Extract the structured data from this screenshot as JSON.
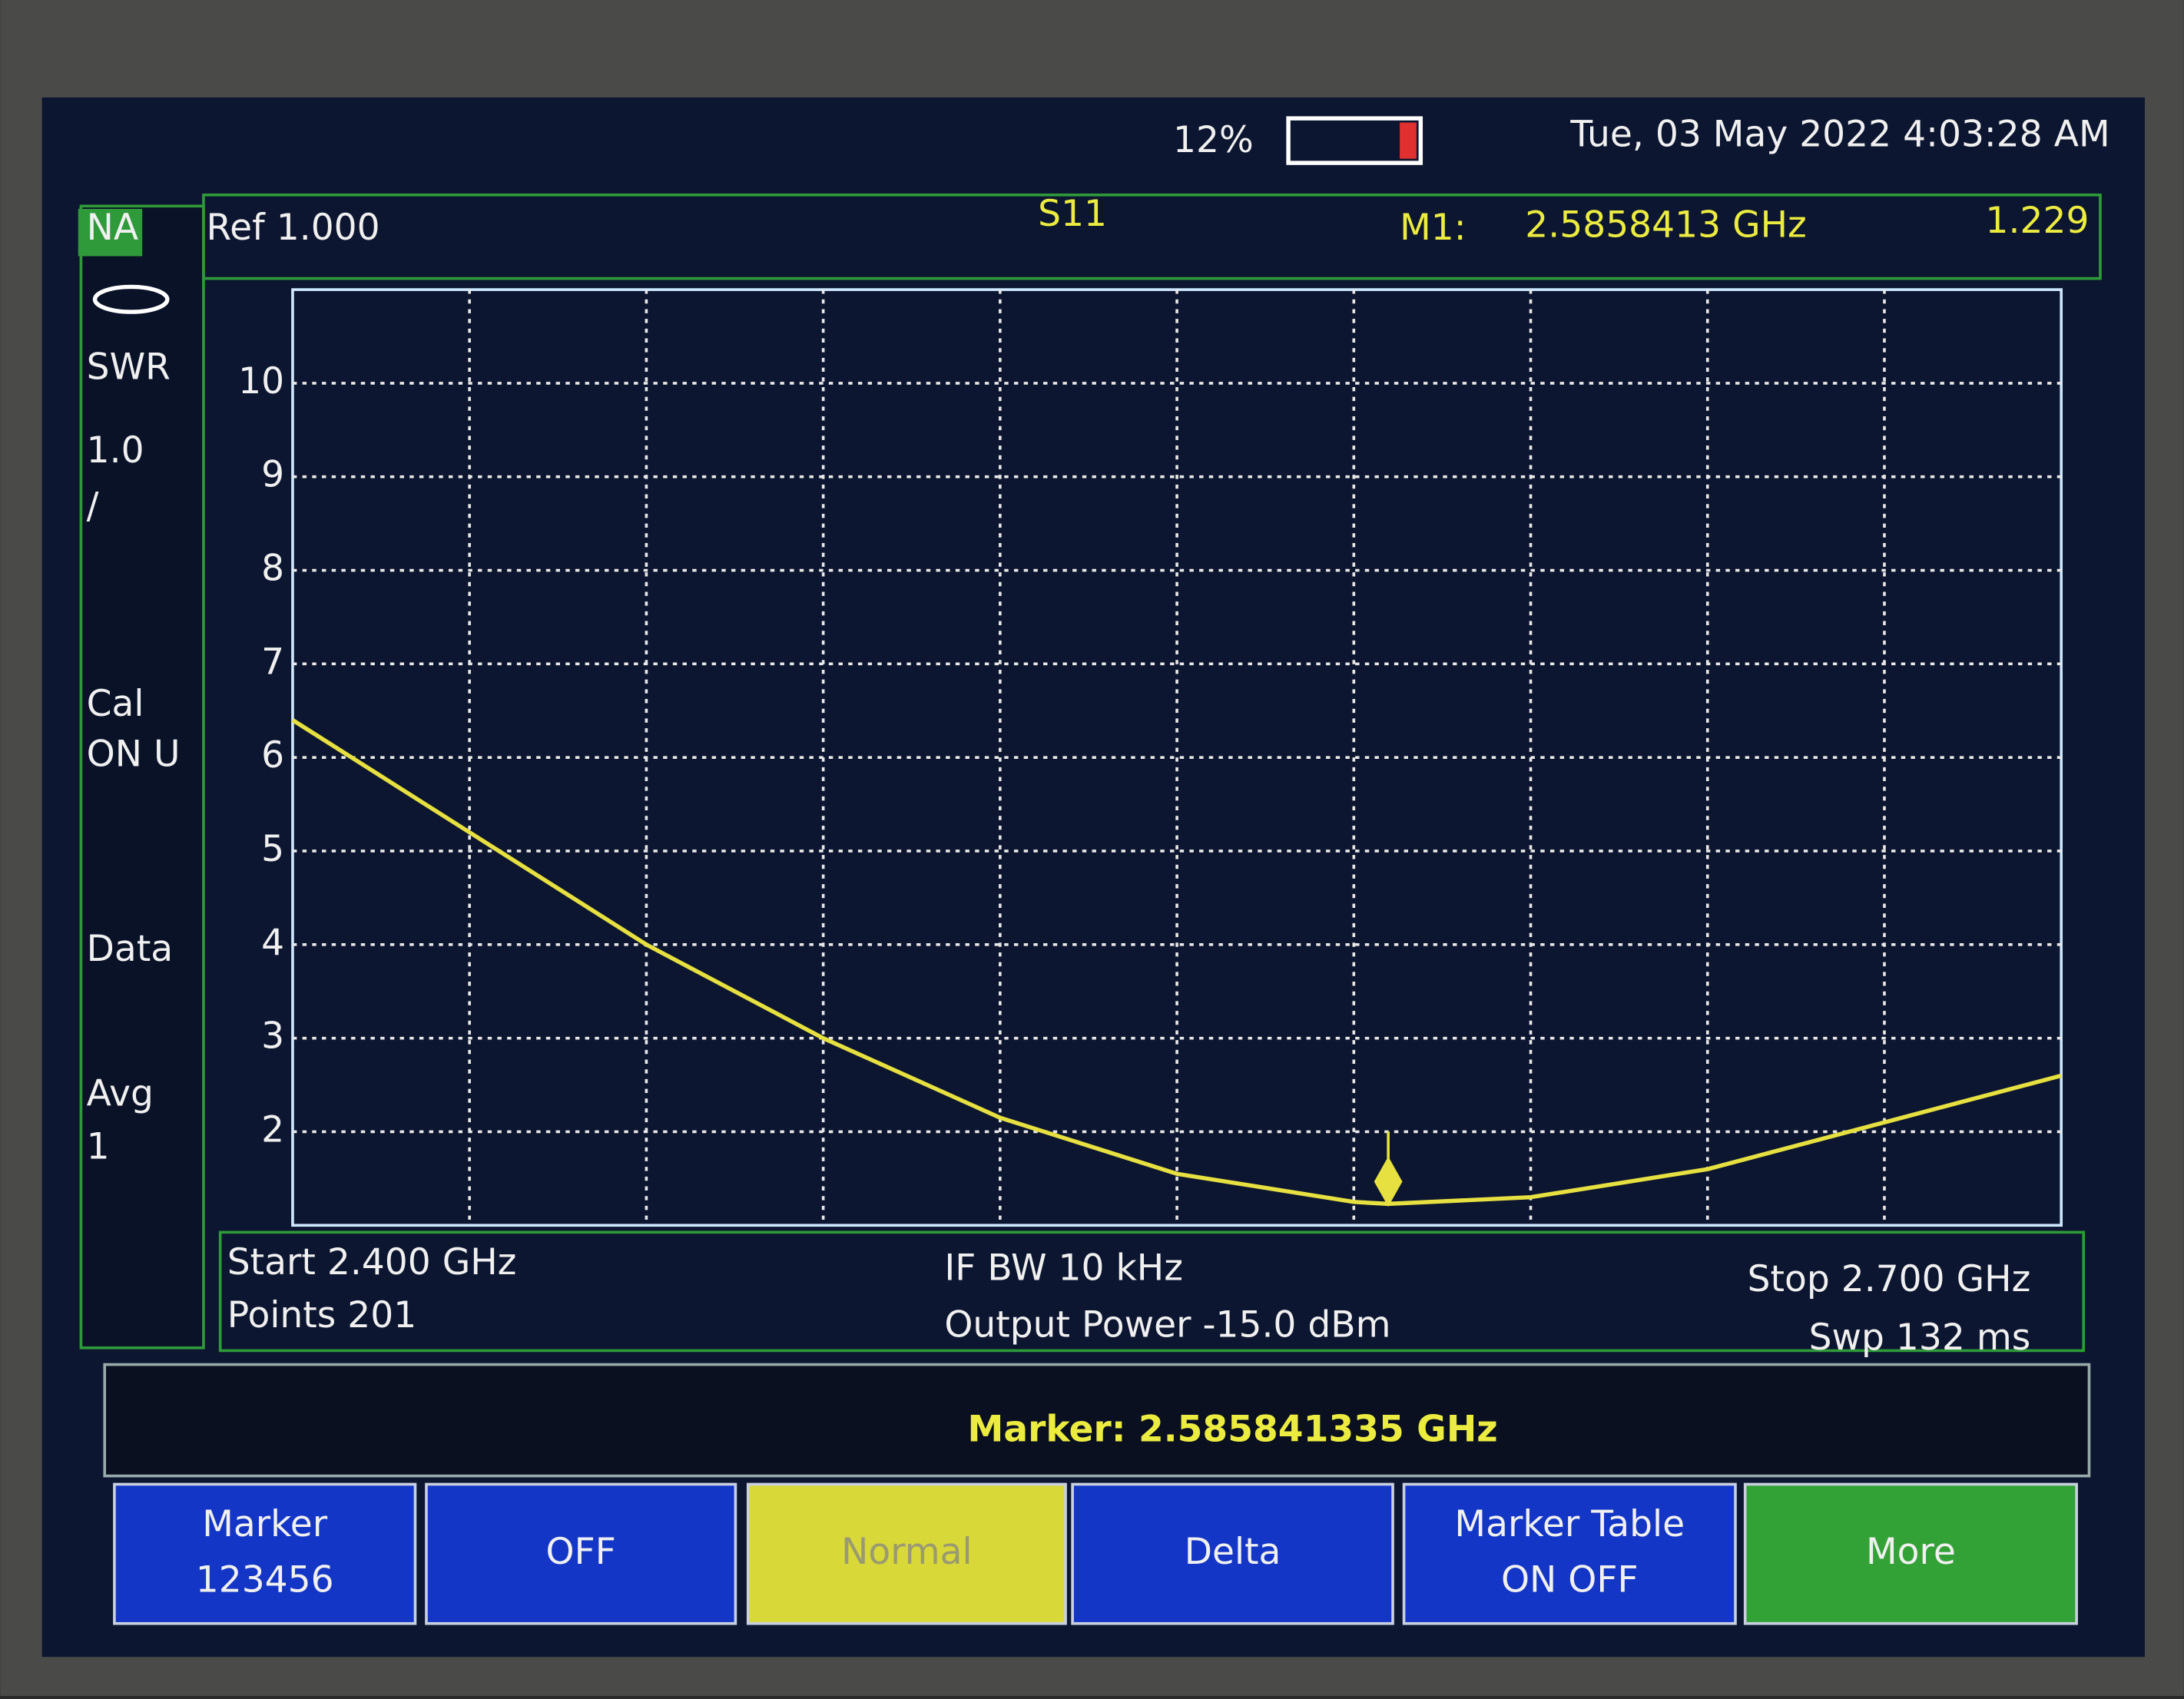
{
  "status": {
    "battery": "12%",
    "datetime": "Tue, 03 May 2022 4:03:28 AM"
  },
  "sidebar": [
    "NA",
    "SWR",
    "1.0",
    "/",
    "Cal",
    "ON U",
    "Data",
    "Avg",
    "1"
  ],
  "header": {
    "ref": "Ref 1.000",
    "trace": "S11",
    "marker_label": "M1:",
    "marker_freq": "2.5858413 GHz",
    "marker_value": "1.229"
  },
  "chart_data": {
    "type": "line",
    "x": [
      2.4,
      2.43,
      2.46,
      2.49,
      2.52,
      2.55,
      2.58,
      2.5858,
      2.61,
      2.64,
      2.67,
      2.7
    ],
    "series": [
      {
        "name": "S11",
        "color": "#e6e040",
        "values": [
          6.4,
          5.2,
          4.0,
          3.0,
          2.15,
          1.55,
          1.25,
          1.229,
          1.3,
          1.6,
          2.1,
          2.6
        ]
      }
    ],
    "marker": {
      "x": 2.5858413,
      "value": 1.229
    },
    "xlim": [
      2.4,
      2.7
    ],
    "ylim": [
      1,
      11
    ],
    "yticks": [
      2,
      3,
      4,
      5,
      6,
      7,
      8,
      9,
      10
    ],
    "grid": true
  },
  "footer": {
    "start": "Start 2.400 GHz",
    "points": "Points 201",
    "ifbw": "IF BW 10 kHz",
    "power": "Output Power -15.0 dBm",
    "stop": "Stop 2.700 GHz",
    "sweep": "Swp 132 ms"
  },
  "entry": "Marker: 2.585841335 GHz",
  "buttons": [
    [
      "Marker",
      "123456"
    ],
    [
      "OFF"
    ],
    [
      "Normal"
    ],
    [
      "Delta"
    ],
    [
      "Marker Table",
      "ON  OFF"
    ],
    [
      "More"
    ]
  ]
}
